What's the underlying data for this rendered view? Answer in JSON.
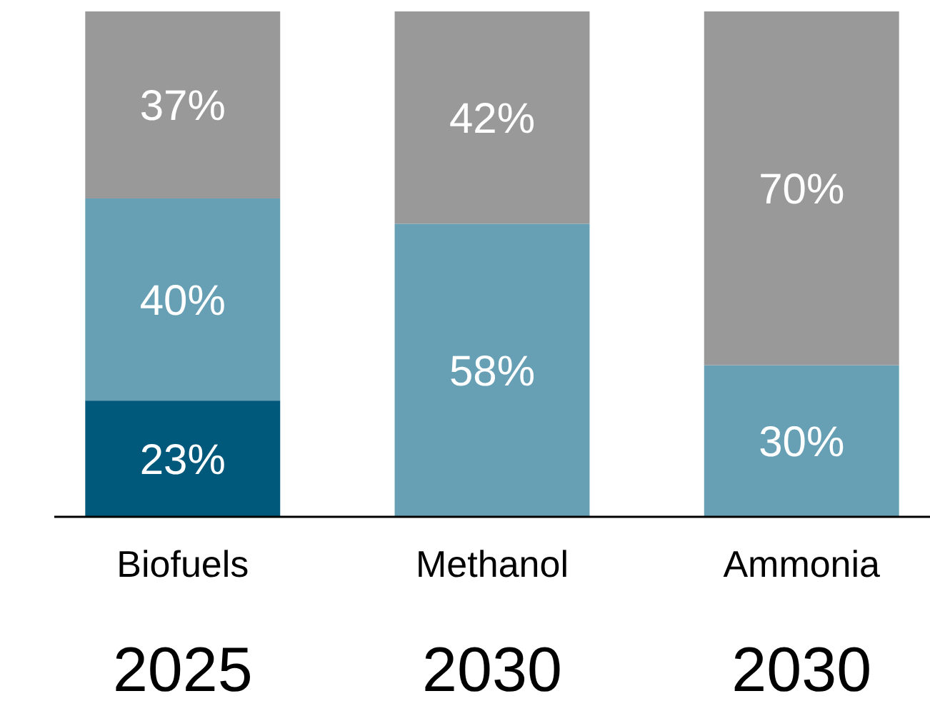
{
  "chart_data": {
    "type": "bar",
    "stacked": true,
    "categories": [
      "Biofuels",
      "Methanol",
      "Ammonia"
    ],
    "series": [
      {
        "color": "#00587a",
        "values": [
          23,
          null,
          null
        ],
        "value_labels": [
          "23%",
          null,
          null
        ]
      },
      {
        "color": "#67a0b4",
        "values": [
          40,
          58,
          30
        ],
        "value_labels": [
          "40%",
          "58%",
          "30%"
        ]
      },
      {
        "color": "#999999",
        "values": [
          37,
          42,
          70
        ],
        "value_labels": [
          "37%",
          "42%",
          "70%"
        ]
      }
    ],
    "annotations": [
      "2025",
      "2030",
      "2030"
    ]
  }
}
